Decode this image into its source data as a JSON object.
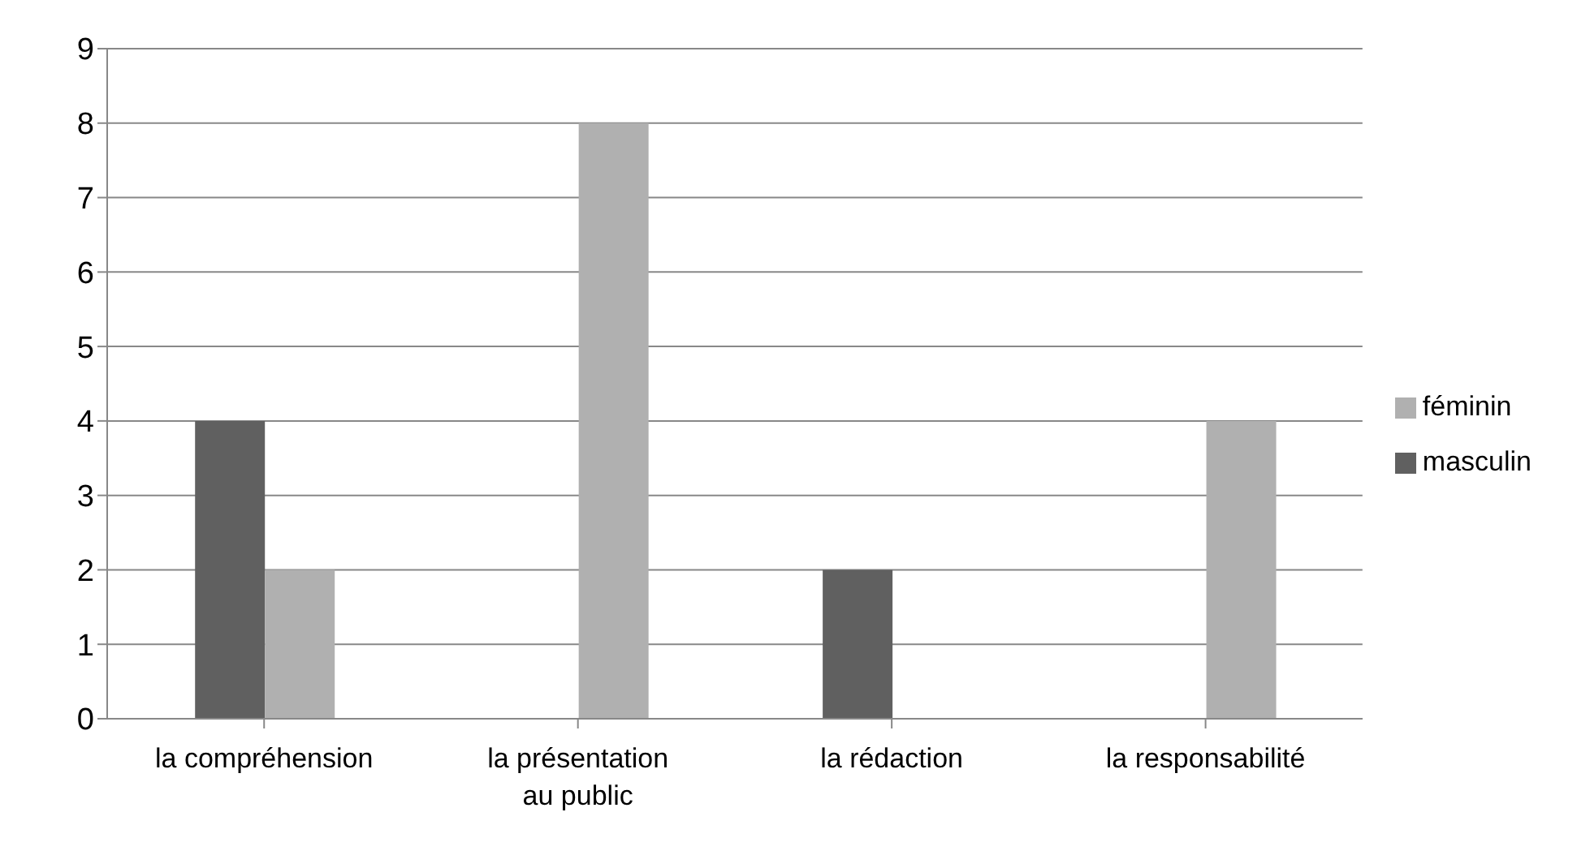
{
  "chart_data": {
    "type": "bar",
    "categories": [
      "la compréhension",
      "la présentation au public",
      "la rédaction",
      "la responsabilité"
    ],
    "series": [
      {
        "name": "masculin",
        "color": "#606060",
        "values": [
          4,
          0,
          2,
          0
        ]
      },
      {
        "name": "féminin",
        "color": "#b0b0b0",
        "values": [
          2,
          8,
          0,
          4
        ]
      }
    ],
    "ylim": [
      0,
      9
    ],
    "yticks": [
      0,
      1,
      2,
      3,
      4,
      5,
      6,
      7,
      8,
      9
    ],
    "grid": "y",
    "legend": "right"
  }
}
